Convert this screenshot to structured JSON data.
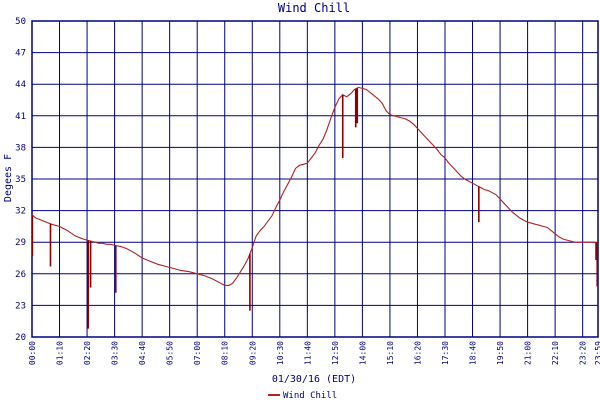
{
  "chart_data": {
    "type": "line",
    "title": "Wind Chill",
    "xlabel": "01/30/16 (EDT)",
    "ylabel": "Degees F",
    "ylim": [
      20,
      50
    ],
    "yticks": [
      20,
      23,
      26,
      29,
      32,
      35,
      38,
      41,
      44,
      47,
      50
    ],
    "grid": true,
    "legend_position": "bottom-left",
    "colors": {
      "grid": "#000080",
      "axis_text": "#000080",
      "series": "#b22222"
    },
    "xtick_labels": [
      "00:00",
      "01:10",
      "02:20",
      "03:30",
      "04:40",
      "05:50",
      "07:00",
      "08:10",
      "09:20",
      "10:30",
      "11:40",
      "12:50",
      "14:00",
      "15:10",
      "16:20",
      "17:30",
      "18:40",
      "19:50",
      "21:00",
      "22:10",
      "23:20",
      "23:59"
    ],
    "xtick_times_min": [
      0,
      70,
      140,
      210,
      280,
      350,
      420,
      490,
      560,
      630,
      700,
      770,
      840,
      910,
      980,
      1050,
      1120,
      1190,
      1260,
      1330,
      1400,
      1439
    ],
    "series": [
      {
        "name": "Wind Chill",
        "x_min": [
          0,
          10,
          30,
          50,
          70,
          90,
          110,
          130,
          140,
          150,
          160,
          170,
          180,
          190,
          200,
          210,
          225,
          240,
          260,
          280,
          300,
          320,
          340,
          360,
          380,
          400,
          420,
          440,
          460,
          480,
          490,
          500,
          510,
          520,
          530,
          540,
          550,
          560,
          570,
          580,
          590,
          600,
          610,
          620,
          630,
          640,
          650,
          660,
          670,
          680,
          690,
          700,
          710,
          720,
          730,
          740,
          750,
          760,
          770,
          780,
          790,
          800,
          810,
          820,
          830,
          840,
          850,
          860,
          870,
          880,
          890,
          900,
          910,
          920,
          930,
          940,
          950,
          960,
          970,
          980,
          990,
          1000,
          1010,
          1020,
          1030,
          1040,
          1050,
          1060,
          1070,
          1080,
          1090,
          1100,
          1110,
          1120,
          1130,
          1140,
          1150,
          1160,
          1170,
          1180,
          1190,
          1200,
          1210,
          1220,
          1230,
          1240,
          1250,
          1260,
          1270,
          1280,
          1290,
          1300,
          1310,
          1320,
          1330,
          1340,
          1350,
          1360,
          1370,
          1380,
          1390,
          1400,
          1410,
          1420,
          1430,
          1439
        ],
        "values": [
          31.6,
          31.3,
          31.0,
          30.7,
          30.5,
          30.1,
          29.6,
          29.3,
          29.2,
          29.1,
          29.0,
          28.9,
          28.9,
          28.8,
          28.8,
          28.7,
          28.6,
          28.4,
          28.0,
          27.5,
          27.2,
          26.9,
          26.7,
          26.5,
          26.3,
          26.2,
          26.0,
          25.8,
          25.5,
          25.1,
          24.9,
          24.9,
          25.1,
          25.6,
          26.2,
          26.8,
          27.5,
          28.5,
          29.6,
          30.1,
          30.5,
          31.0,
          31.5,
          32.3,
          33.0,
          33.8,
          34.5,
          35.2,
          36.0,
          36.3,
          36.4,
          36.5,
          37.0,
          37.5,
          38.2,
          38.8,
          39.7,
          40.8,
          41.8,
          42.6,
          43.0,
          42.8,
          43.1,
          43.5,
          43.7,
          43.6,
          43.5,
          43.2,
          42.9,
          42.6,
          42.2,
          41.5,
          41.1,
          41.0,
          40.9,
          40.8,
          40.7,
          40.5,
          40.2,
          39.8,
          39.4,
          39.0,
          38.6,
          38.2,
          37.8,
          37.3,
          37.0,
          36.5,
          36.1,
          35.7,
          35.3,
          35.0,
          34.8,
          34.6,
          34.4,
          34.2,
          34.0,
          33.9,
          33.7,
          33.5,
          33.1,
          32.7,
          32.3,
          31.9,
          31.6,
          31.3,
          31.1,
          30.9,
          30.8,
          30.7,
          30.6,
          30.5,
          30.4,
          30.1,
          29.8,
          29.5,
          29.3,
          29.2,
          29.1,
          29.0,
          29.0,
          29.0,
          29.0,
          29.0,
          29.0,
          28.9
        ],
        "drops": [
          {
            "x_min": 1,
            "value": 27.7
          },
          {
            "x_min": 47,
            "value": 26.7
          },
          {
            "x_min": 143,
            "value": 20.8
          },
          {
            "x_min": 149,
            "value": 24.7
          },
          {
            "x_min": 213,
            "value": 24.2
          },
          {
            "x_min": 554,
            "value": 22.5
          },
          {
            "x_min": 790,
            "value": 37.0
          },
          {
            "x_min": 823,
            "value": 39.9
          },
          {
            "x_min": 827,
            "value": 40.3
          },
          {
            "x_min": 1136,
            "value": 30.9
          },
          {
            "x_min": 1434,
            "value": 27.3
          },
          {
            "x_min": 1437,
            "value": 24.8
          }
        ]
      }
    ]
  }
}
